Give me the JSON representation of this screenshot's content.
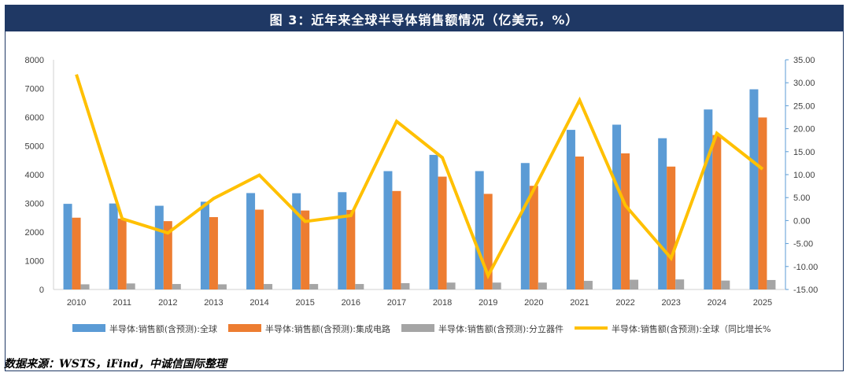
{
  "title": "图 3：近年来全球半导体销售额情况（亿美元，%）",
  "source": "数据来源：WSTS，iFind，中诚信国际整理",
  "chart_data": {
    "type": "bar",
    "categories": [
      "2010",
      "2011",
      "2012",
      "2013",
      "2014",
      "2015",
      "2016",
      "2017",
      "2018",
      "2019",
      "2020",
      "2021",
      "2022",
      "2023",
      "2024",
      "2025"
    ],
    "left_axis": {
      "ylim": [
        0,
        8000
      ],
      "ticks": [
        "0",
        "1000",
        "2000",
        "3000",
        "4000",
        "5000",
        "6000",
        "7000",
        "8000"
      ]
    },
    "right_axis": {
      "ylim": [
        -15,
        35
      ],
      "ticks": [
        "-15.00",
        "-10.00",
        "-5.00",
        "0.00",
        "5.00",
        "10.00",
        "15.00",
        "20.00",
        "25.00",
        "30.00",
        "35.00"
      ]
    },
    "grid": false,
    "legend_position": "bottom",
    "series": [
      {
        "name": "半导体:销售额(含预测):全球",
        "type": "bar",
        "axis": "left",
        "color": "#5b9bd5",
        "values": [
          2983,
          2995,
          2916,
          3056,
          3358,
          3352,
          3389,
          4122,
          4688,
          4123,
          4404,
          5559,
          5740,
          5268,
          6269,
          6972
        ]
      },
      {
        "name": "半导体:销售额(含预测):集成电路",
        "type": "bar",
        "axis": "left",
        "color": "#ed7d31",
        "values": [
          2500,
          2470,
          2380,
          2520,
          2780,
          2750,
          2770,
          3430,
          3930,
          3330,
          3610,
          4630,
          4740,
          4280,
          5380,
          5990
        ]
      },
      {
        "name": "半导体:销售额(含预测):分立器件",
        "type": "bar",
        "axis": "left",
        "color": "#a5a5a5",
        "values": [
          180,
          210,
          190,
          180,
          190,
          190,
          190,
          220,
          240,
          240,
          240,
          300,
          340,
          350,
          310,
          330
        ]
      },
      {
        "name": "半导体:销售额(含预测):全球（同比增长%",
        "type": "line",
        "axis": "right",
        "color": "#ffc000",
        "values": [
          31.8,
          0.4,
          -2.7,
          4.8,
          9.9,
          -0.2,
          1.1,
          21.6,
          13.7,
          -12.0,
          6.8,
          26.2,
          3.3,
          -8.2,
          19.0,
          11.2
        ]
      }
    ]
  }
}
